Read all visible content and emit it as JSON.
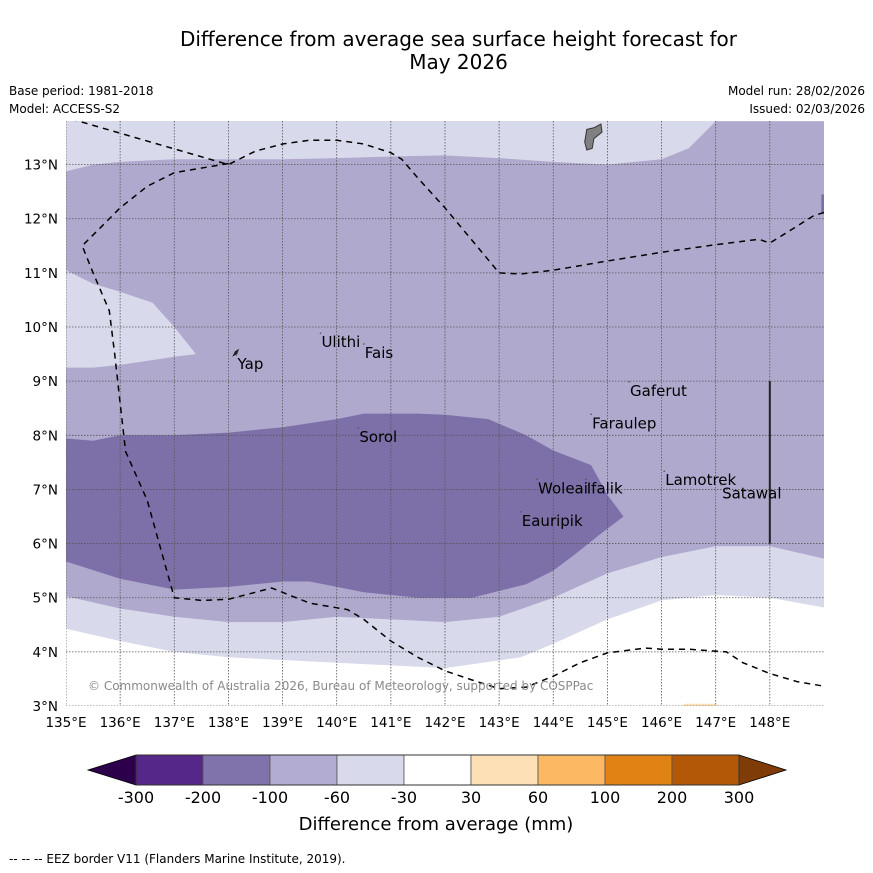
{
  "title": {
    "line1": "Difference from average sea surface height forecast for",
    "line2": "May 2026"
  },
  "meta": {
    "base_period": "Base period: 1981-2018",
    "model": "Model: ACCESS-S2",
    "model_run": "Model run: 28/02/2026",
    "issued": "Issued: 02/03/2026"
  },
  "map": {
    "lon_range": [
      135,
      149
    ],
    "lat_range": [
      3,
      13.8
    ],
    "lon_ticks": [
      "135°E",
      "136°E",
      "137°E",
      "138°E",
      "139°E",
      "140°E",
      "141°E",
      "142°E",
      "143°E",
      "144°E",
      "145°E",
      "146°E",
      "147°E",
      "148°E"
    ],
    "lat_ticks": [
      "3°N",
      "4°N",
      "5°N",
      "6°N",
      "7°N",
      "8°N",
      "9°N",
      "10°N",
      "11°N",
      "12°N",
      "13°N"
    ],
    "copyright": "© Commonwealth of Australia 2026, Bureau of Meteorology, supported by COSPPac",
    "places": [
      {
        "name": "Yap",
        "lon": 138.15,
        "lat": 9.45
      },
      {
        "name": "Ulithi",
        "lon": 139.7,
        "lat": 9.85
      },
      {
        "name": "Fais",
        "lon": 140.5,
        "lat": 9.65
      },
      {
        "name": "Gaferut",
        "lon": 145.4,
        "lat": 8.95
      },
      {
        "name": "Faraulep",
        "lon": 144.7,
        "lat": 8.35
      },
      {
        "name": "Sorol",
        "lon": 140.4,
        "lat": 8.1
      },
      {
        "name": "Woleai",
        "lon": 143.7,
        "lat": 7.15
      },
      {
        "name": "Ifalik",
        "lon": 144.6,
        "lat": 7.15
      },
      {
        "name": "Lamotrek",
        "lon": 146.05,
        "lat": 7.3
      },
      {
        "name": "Satawal",
        "lon": 147.1,
        "lat": 7.05
      },
      {
        "name": "Eauripik",
        "lon": 143.4,
        "lat": 6.55
      }
    ]
  },
  "colorbar": {
    "title": "Difference from average (mm)",
    "ticks": [
      "-300",
      "-200",
      "-100",
      "-60",
      "-30",
      "30",
      "60",
      "100",
      "200",
      "300"
    ],
    "under_color": "#2d004b",
    "over_color": "#7f3b08",
    "bins": [
      {
        "range": "-300 to -200",
        "color": "#542788"
      },
      {
        "range": "-200 to -100",
        "color": "#8073ac"
      },
      {
        "range": "-100 to -60",
        "color": "#b2abd2"
      },
      {
        "range": "-60 to -30",
        "color": "#d8daeb"
      },
      {
        "range": "-30 to 30",
        "color": "#ffffff"
      },
      {
        "range": "30 to 60",
        "color": "#fee0b6"
      },
      {
        "range": "60 to 100",
        "color": "#fdb863"
      },
      {
        "range": "100 to 200",
        "color": "#e08214"
      },
      {
        "range": "200 to 300",
        "color": "#b35806"
      }
    ]
  },
  "map_fill_colors": {
    "band_60_30": "#d8daeb",
    "band_100_60": "#b0a9ce",
    "band_200_100": "#7d70a8",
    "land": "#808080"
  },
  "footnote": "--  --  -- EEZ border V11 (Flanders Marine Institute, 2019)."
}
